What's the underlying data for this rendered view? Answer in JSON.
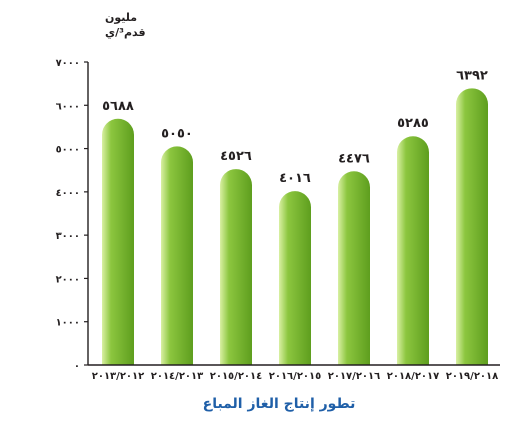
{
  "chart_data": {
    "type": "bar",
    "title": "تطور إنتاج الغاز المباع",
    "ylabel_line1": "مليون",
    "ylabel_line2": "قدم³/ي",
    "xlabel": "",
    "ylim": [
      0,
      7000
    ],
    "yticks": [
      0,
      1000,
      2000,
      3000,
      4000,
      5000,
      6000,
      7000
    ],
    "ytick_labels": [
      "٠",
      "١٠٠٠",
      "٢٠٠٠",
      "٣٠٠٠",
      "٤٠٠٠",
      "٥٠٠٠",
      "٦٠٠٠",
      "٧٠٠٠"
    ],
    "categories": [
      "٢٠١٣/٢٠١٢",
      "٢٠١٤/٢٠١٣",
      "٢٠١٥/٢٠١٤",
      "٢٠١٦/٢٠١٥",
      "٢٠١٧/٢٠١٦",
      "٢٠١٨/٢٠١٧",
      "٢٠١٩/٢٠١٨"
    ],
    "values": [
      5688,
      5050,
      4526,
      4016,
      4476,
      5285,
      6392
    ],
    "value_labels": [
      "٥٦٨٨",
      "٥٠٥٠",
      "٤٥٢٦",
      "٤٠١٦",
      "٤٤٧٦",
      "٥٢٨٥",
      "٦٣٩٢"
    ],
    "grid": false,
    "legend": "none",
    "colors": {
      "bar_light": "#d9f0a3",
      "bar_mid": "#8cc63f",
      "bar_dark": "#5e9e1e",
      "axis": "#231f20",
      "text": "#231f20",
      "title": "#1f5fa8"
    }
  }
}
